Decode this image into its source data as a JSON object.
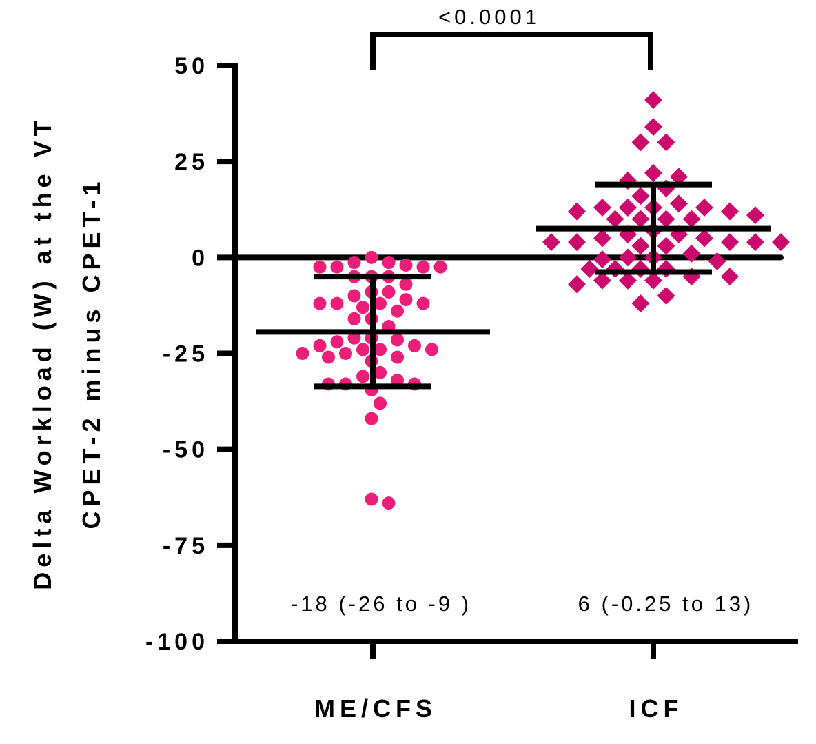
{
  "chart_data": {
    "type": "scatter",
    "subtype": "dot-plot-with-mean-sd",
    "title": "",
    "ylabel_line1": "Delta Workload (W) at the VT",
    "ylabel_line2": "CPET-2 minus CPET-1",
    "xlabel": "",
    "ylim": [
      -100,
      50
    ],
    "yticks": [
      50,
      25,
      0,
      -25,
      -50,
      -75,
      -100
    ],
    "ytick_labels": [
      "50",
      "25",
      "0",
      "-25",
      "-50",
      "-75",
      "-100"
    ],
    "reference_line": 0,
    "categories": [
      "ME/CFS",
      "ICF"
    ],
    "series": [
      {
        "name": "ME/CFS",
        "marker": "circle",
        "color": "#ED1E79",
        "mean": -19.4,
        "sd_upper": -5,
        "sd_lower": -33.6,
        "annotation": "-18 (-26 to -9 )",
        "values": [
          0,
          -1.3,
          -1.3,
          -2.5,
          -2.5,
          -2.5,
          -2.5,
          -2,
          -5,
          -5,
          -5,
          -7,
          -9,
          -10,
          -9,
          -11,
          -12,
          -12,
          -12,
          -12,
          -13,
          -14,
          -16,
          -16,
          -18,
          -21,
          -22,
          -21.5,
          -21,
          -23,
          -24,
          -24,
          -25,
          -26,
          -27,
          -26,
          -25,
          -24,
          -23,
          -30,
          -32,
          -33,
          -34.5,
          -33,
          -33,
          -31,
          -38,
          -42,
          -64,
          -63
        ]
      },
      {
        "name": "ICF",
        "marker": "diamond",
        "color": "#CC0A6E",
        "mean": 7.5,
        "sd_upper": 19,
        "sd_lower": -3.8,
        "annotation": "6 (-0.25 to 13)",
        "values": [
          41,
          34,
          30,
          30,
          22,
          20,
          21,
          18,
          16,
          14,
          13,
          13,
          12,
          13,
          13,
          12,
          11,
          10,
          10,
          10,
          10,
          6,
          5,
          4,
          4,
          3,
          3,
          4,
          4,
          4,
          5,
          6,
          7,
          1,
          0,
          -0.5,
          0,
          -1,
          -3,
          -3,
          -3,
          -3,
          -5,
          -6,
          -7,
          -6,
          -5,
          -6,
          -10,
          -12
        ]
      }
    ],
    "significance": {
      "groups": [
        "ME/CFS",
        "ICF"
      ],
      "label": "<0.0001"
    },
    "grid": false,
    "legend": "none"
  }
}
